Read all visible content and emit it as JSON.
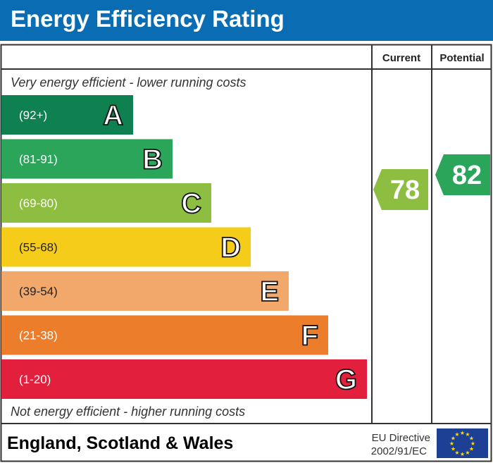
{
  "title": "Energy Efficiency Rating",
  "columns": {
    "current": "Current",
    "potential": "Potential"
  },
  "top_note": "Very energy efficient - lower running costs",
  "bottom_note": "Not energy efficient - higher running costs",
  "footer": {
    "region": "England, Scotland & Wales",
    "directive_line1": "EU Directive",
    "directive_line2": "2002/91/EC",
    "flag": "eu-flag-icon"
  },
  "chart_data": {
    "type": "bar",
    "bands": [
      {
        "letter": "A",
        "range": "(92+)",
        "color": "#0f8050"
      },
      {
        "letter": "B",
        "range": "(81-91)",
        "color": "#2aa55a"
      },
      {
        "letter": "C",
        "range": "(69-80)",
        "color": "#8dbe42"
      },
      {
        "letter": "D",
        "range": "(55-68)",
        "color": "#f5cc1a"
      },
      {
        "letter": "E",
        "range": "(39-54)",
        "color": "#f1a86a"
      },
      {
        "letter": "F",
        "range": "(21-38)",
        "color": "#ec7d2a"
      },
      {
        "letter": "G",
        "range": "(1-20)",
        "color": "#e21f3c"
      }
    ],
    "current": {
      "value": 78,
      "band": "C",
      "color": "#8dbe42"
    },
    "potential": {
      "value": 82,
      "band": "B",
      "color": "#2aa55a"
    }
  }
}
